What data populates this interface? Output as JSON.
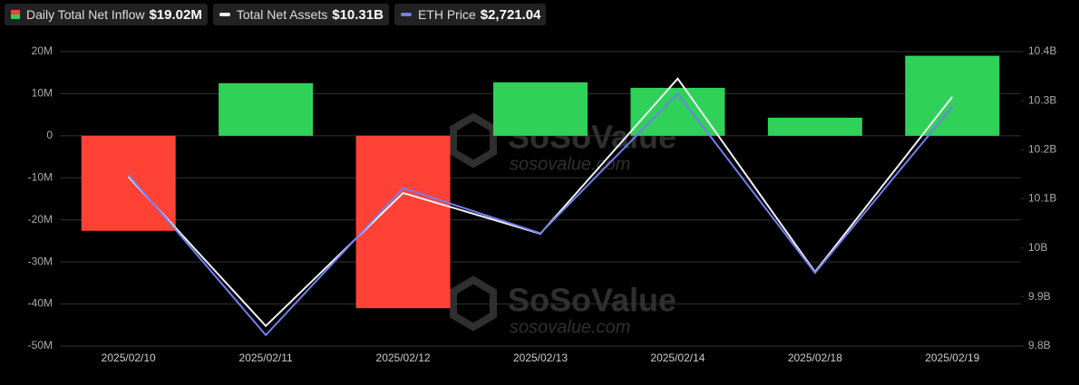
{
  "chart_data": {
    "type": "bar",
    "categories": [
      "2025/02/10",
      "2025/02/11",
      "2025/02/12",
      "2025/02/13",
      "2025/02/14",
      "2025/02/18",
      "2025/02/19"
    ],
    "series": [
      {
        "name": "Daily Total Net Inflow",
        "type": "bar",
        "axis": "y",
        "legend_value": "$19.02M",
        "positive_color": "#2fd159",
        "negative_color": "#ff4136",
        "values": [
          -22600000,
          12500000,
          -41000000,
          12700000,
          11400000,
          4300000,
          19020000
        ]
      },
      {
        "name": "Total Net Assets",
        "type": "line",
        "axis": "y2",
        "legend_value": "$10.31B",
        "color": "#f2f2f2",
        "values": [
          10145000000,
          9841000000,
          10112000000,
          10029000000,
          10345000000,
          9951000000,
          10308000000
        ]
      },
      {
        "name": "ETH Price",
        "type": "line",
        "axis": "y3",
        "legend_value": "$2,721.04",
        "color": "#6f7ff0",
        "values": [
          2685,
          2600,
          2678,
          2654,
          2728,
          2633,
          2721.04
        ]
      }
    ],
    "ylim": [
      -50000000,
      20000000
    ],
    "yticks": [
      {
        "value": 20000000,
        "label": "20M"
      },
      {
        "value": 10000000,
        "label": "10M"
      },
      0,
      {
        "value": -10000000,
        "label": "-10M"
      },
      {
        "value": -20000000,
        "label": "-20M"
      },
      {
        "value": -30000000,
        "label": "-30M"
      },
      {
        "value": -40000000,
        "label": "-40M"
      },
      {
        "value": -50000000,
        "label": "-50M"
      }
    ],
    "y2lim": [
      9800000000,
      10400000000
    ],
    "y2ticks": [
      {
        "value": 10400000000,
        "label": "10.4B"
      },
      {
        "value": 10300000000,
        "label": "10.3B"
      },
      {
        "value": 10200000000,
        "label": "10.2B"
      },
      {
        "value": 10100000000,
        "label": "10.1B"
      },
      {
        "value": 10000000000,
        "label": "10B"
      },
      {
        "value": 9900000000,
        "label": "9.9B"
      },
      {
        "value": 9800000000,
        "label": "9.8B"
      }
    ],
    "y3lim": [
      2594.2,
      2750.3
    ],
    "grid": true,
    "watermark": {
      "brand": "SoSoValue",
      "site": "sosovalue.com"
    }
  }
}
